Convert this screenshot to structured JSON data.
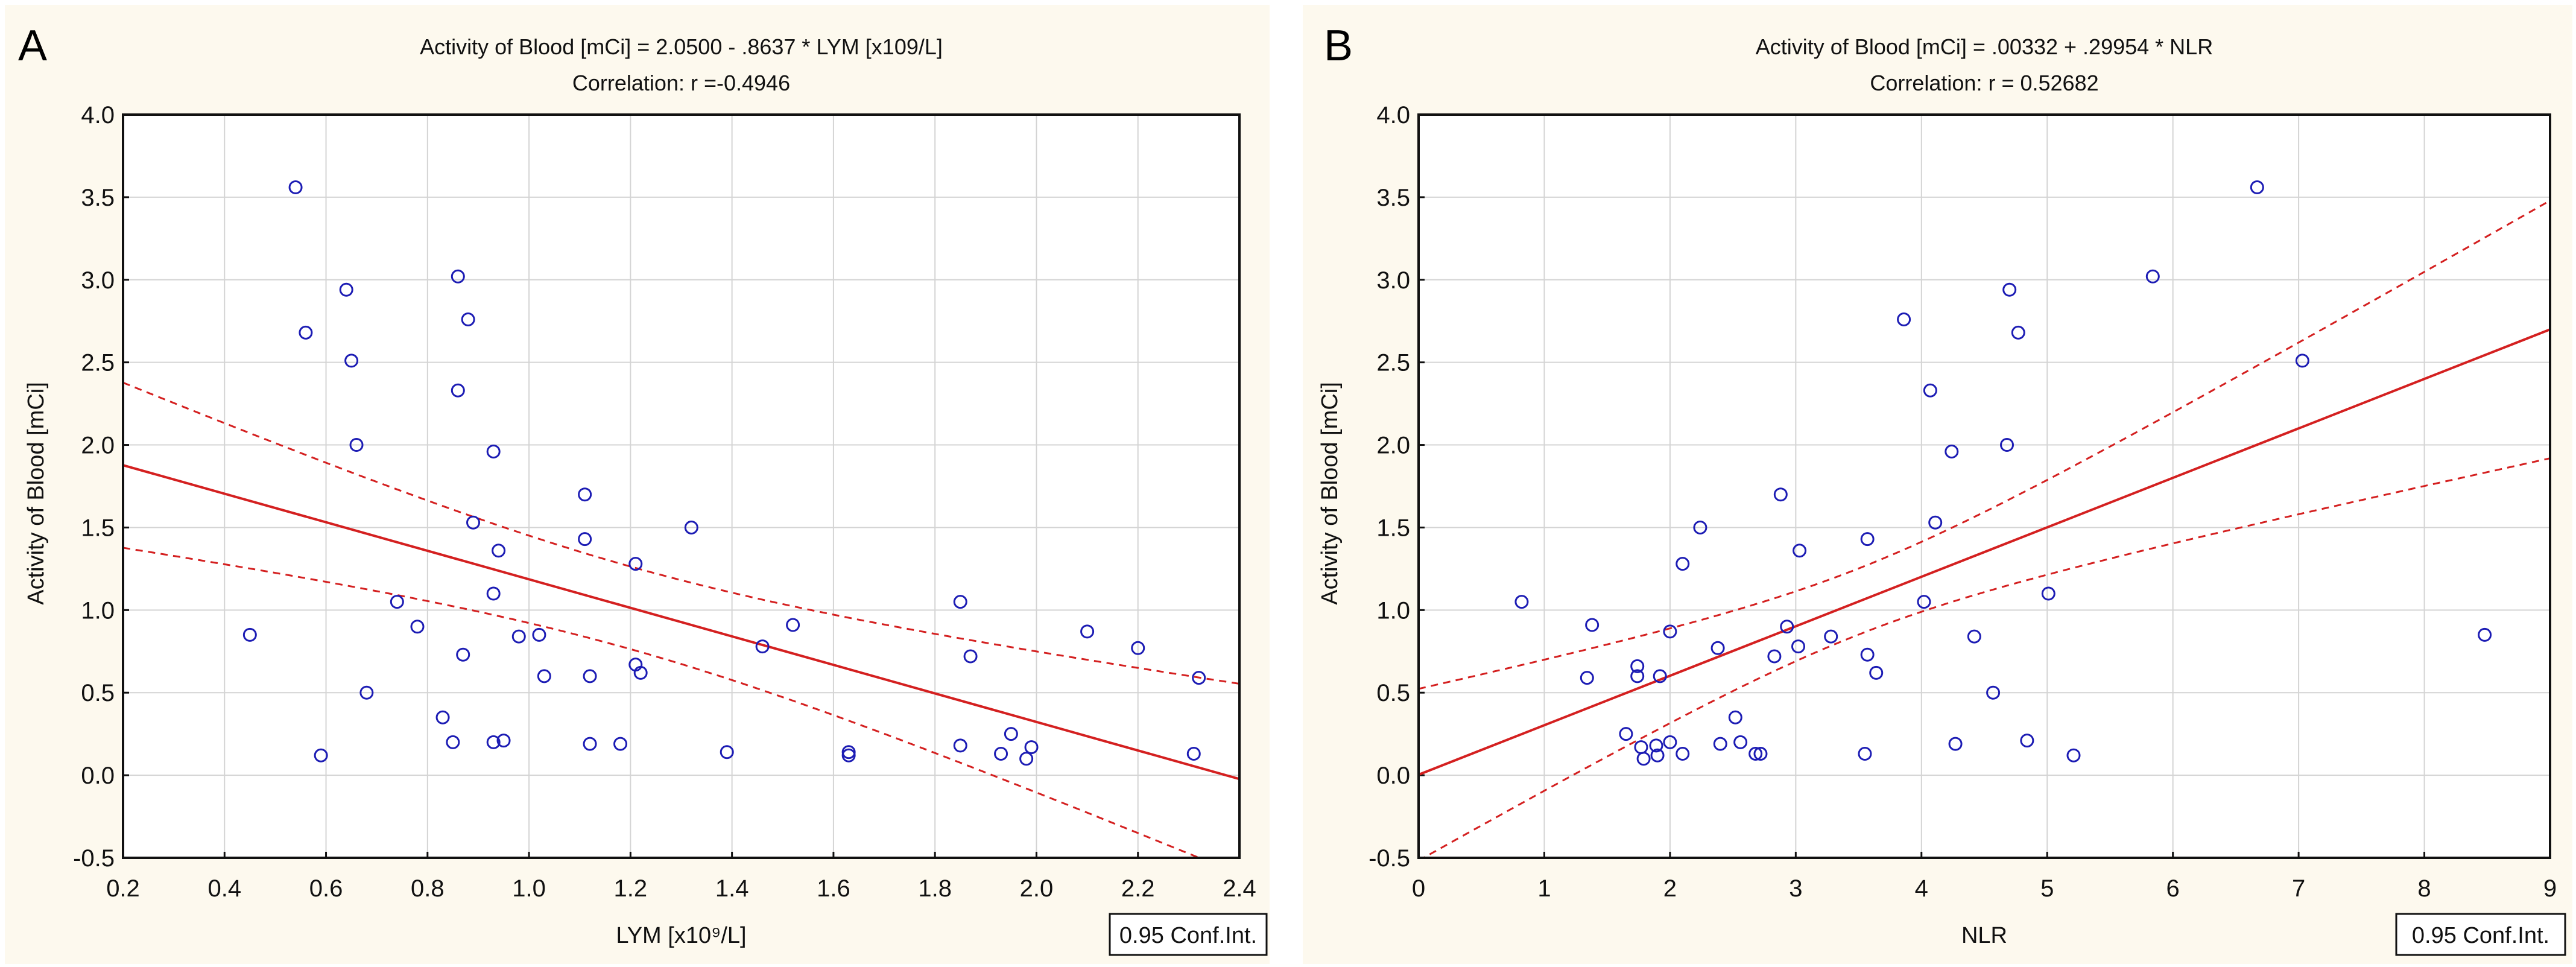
{
  "chart_data": [
    {
      "type": "scatter",
      "panel_label": "A",
      "title": "Activity of Blood [mCi] = 2.0500 - .8637  * LYM [x109/L]",
      "subtitle": "Correlation: r =-0.4946",
      "xlabel": "LYM [x10⁹/L]",
      "ylabel": "Activity of Blood [mCi]",
      "xlim": [
        0.2,
        2.4
      ],
      "ylim": [
        -0.5,
        4.0
      ],
      "xticks": [
        "0.2",
        "0.4",
        "0.6",
        "0.8",
        "1.0",
        "1.2",
        "1.4",
        "1.6",
        "1.8",
        "2.0",
        "2.2",
        "2.4"
      ],
      "yticks": [
        "-0.5",
        "0.0",
        "0.5",
        "1.0",
        "1.5",
        "2.0",
        "2.5",
        "3.0",
        "3.5",
        "4.0"
      ],
      "grid": true,
      "legend": "0.95 Conf.Int.",
      "legend_position": "bottom-right",
      "regression": {
        "intercept": 2.05,
        "slope": -0.8637
      },
      "ci": {
        "level": 0.95,
        "center_x": 1.2,
        "min_half_width": 0.25,
        "spread": 0.1875
      },
      "points": [
        [
          0.54,
          3.56
        ],
        [
          0.56,
          2.68
        ],
        [
          0.64,
          2.94
        ],
        [
          0.65,
          2.51
        ],
        [
          0.66,
          2.0
        ],
        [
          0.86,
          3.02
        ],
        [
          0.88,
          2.76
        ],
        [
          0.86,
          2.33
        ],
        [
          0.93,
          1.96
        ],
        [
          0.89,
          1.53
        ],
        [
          0.94,
          1.36
        ],
        [
          1.11,
          1.7
        ],
        [
          1.11,
          1.43
        ],
        [
          1.32,
          1.5
        ],
        [
          1.21,
          1.28
        ],
        [
          0.93,
          1.1
        ],
        [
          0.74,
          1.05
        ],
        [
          0.78,
          0.9
        ],
        [
          0.45,
          0.85
        ],
        [
          0.98,
          0.84
        ],
        [
          1.02,
          0.85
        ],
        [
          0.87,
          0.73
        ],
        [
          1.03,
          0.6
        ],
        [
          1.12,
          0.6
        ],
        [
          1.21,
          0.67
        ],
        [
          1.22,
          0.62
        ],
        [
          0.68,
          0.5
        ],
        [
          0.83,
          0.35
        ],
        [
          0.85,
          0.2
        ],
        [
          0.93,
          0.2
        ],
        [
          0.95,
          0.21
        ],
        [
          1.12,
          0.19
        ],
        [
          1.18,
          0.19
        ],
        [
          0.59,
          0.12
        ],
        [
          1.39,
          0.14
        ],
        [
          1.46,
          0.78
        ],
        [
          1.52,
          0.91
        ],
        [
          1.63,
          0.14
        ],
        [
          1.63,
          0.12
        ],
        [
          1.85,
          1.05
        ],
        [
          1.87,
          0.72
        ],
        [
          1.85,
          0.18
        ],
        [
          1.93,
          0.13
        ],
        [
          1.95,
          0.25
        ],
        [
          1.98,
          0.1
        ],
        [
          1.99,
          0.17
        ],
        [
          2.1,
          0.87
        ],
        [
          2.2,
          0.77
        ],
        [
          2.32,
          0.59
        ],
        [
          2.31,
          0.13
        ]
      ]
    },
    {
      "type": "scatter",
      "panel_label": "B",
      "title": "Activity of Blood [mCi] = .00332 + .29954 * NLR",
      "subtitle": "Correlation: r = 0.52682",
      "xlabel": "NLR",
      "ylabel": "Activity of Blood [mCi]",
      "xlim": [
        0,
        9
      ],
      "ylim": [
        -0.5,
        4.0
      ],
      "xticks": [
        "0",
        "1",
        "2",
        "3",
        "4",
        "5",
        "6",
        "7",
        "8",
        "9"
      ],
      "yticks": [
        "-0.5",
        "0.0",
        "0.5",
        "1.0",
        "1.5",
        "2.0",
        "2.5",
        "3.0",
        "3.5",
        "4.0"
      ],
      "grid": true,
      "legend": "0.95 Conf.Int.",
      "legend_position": "bottom-right",
      "regression": {
        "intercept": 0.00332,
        "slope": 0.29954
      },
      "ci": {
        "level": 0.95,
        "center_x": 3.5,
        "min_half_width": 0.2,
        "spread": 0.0188
      },
      "points": [
        [
          0.82,
          1.05
        ],
        [
          1.38,
          0.91
        ],
        [
          1.34,
          0.59
        ],
        [
          1.74,
          0.66
        ],
        [
          1.74,
          0.6
        ],
        [
          1.92,
          0.6
        ],
        [
          2.0,
          0.87
        ],
        [
          2.1,
          1.28
        ],
        [
          2.24,
          1.5
        ],
        [
          2.38,
          0.77
        ],
        [
          2.88,
          1.7
        ],
        [
          3.03,
          1.36
        ],
        [
          2.93,
          0.9
        ],
        [
          2.83,
          0.72
        ],
        [
          3.02,
          0.78
        ],
        [
          3.28,
          0.84
        ],
        [
          3.57,
          1.43
        ],
        [
          3.57,
          0.73
        ],
        [
          3.64,
          0.62
        ],
        [
          3.86,
          2.76
        ],
        [
          4.07,
          2.33
        ],
        [
          4.11,
          1.53
        ],
        [
          4.24,
          1.96
        ],
        [
          4.02,
          1.05
        ],
        [
          4.42,
          0.84
        ],
        [
          4.7,
          2.94
        ],
        [
          4.77,
          2.68
        ],
        [
          4.68,
          2.0
        ],
        [
          5.01,
          1.1
        ],
        [
          4.57,
          0.5
        ],
        [
          5.84,
          3.02
        ],
        [
          6.67,
          3.56
        ],
        [
          7.03,
          2.51
        ],
        [
          8.48,
          0.85
        ],
        [
          1.65,
          0.25
        ],
        [
          1.77,
          0.17
        ],
        [
          1.79,
          0.1
        ],
        [
          1.89,
          0.18
        ],
        [
          1.9,
          0.12
        ],
        [
          2.0,
          0.2
        ],
        [
          2.1,
          0.13
        ],
        [
          2.4,
          0.19
        ],
        [
          2.52,
          0.35
        ],
        [
          2.56,
          0.2
        ],
        [
          2.68,
          0.13
        ],
        [
          2.72,
          0.13
        ],
        [
          3.55,
          0.13
        ],
        [
          4.27,
          0.19
        ],
        [
          4.84,
          0.21
        ],
        [
          5.21,
          0.12
        ]
      ]
    }
  ],
  "colors": {
    "background": "#fdf9ee",
    "plot": "#ffffff",
    "grid": "#d4d4d4",
    "points": "#1c1cb4",
    "fit": "#d42020"
  }
}
